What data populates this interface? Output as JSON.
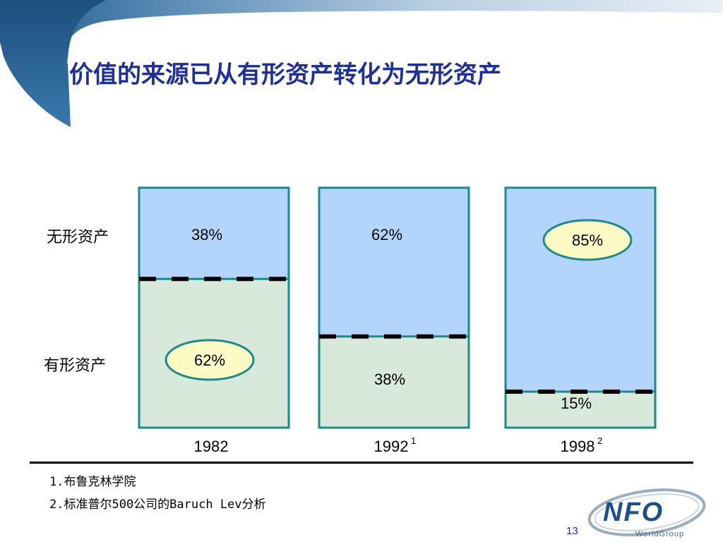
{
  "title": "价值的来源已从有形资产转化为无形资产",
  "row_labels": {
    "intangible": "无形资产",
    "tangible": "有形资产"
  },
  "chart_data": {
    "type": "bar",
    "stacked": true,
    "categories": [
      "1982",
      "1992",
      "1998"
    ],
    "category_superscripts": [
      "",
      "1",
      "2"
    ],
    "series": [
      {
        "name": "无形资产",
        "values": [
          38,
          62,
          85
        ],
        "labels": [
          "38%",
          "62%",
          "85%"
        ],
        "color": "#b3d4fb"
      },
      {
        "name": "有形资产",
        "values": [
          62,
          38,
          15
        ],
        "labels": [
          "62%",
          "38%",
          "15%"
        ],
        "color": "#d8e8da"
      }
    ],
    "highlighted": [
      {
        "series": "有形资产",
        "category": "1982"
      },
      {
        "series": "无形资产",
        "category": "1998"
      }
    ],
    "ylim": [
      0,
      100
    ],
    "border_color": "#1a8a8a",
    "highlight_fill": "#fff9c4"
  },
  "footnotes": [
    "1.布鲁克林学院",
    "2.标准普尔500公司的Baruch Lev分析"
  ],
  "page_number": "13",
  "logo": {
    "brand": "NFO",
    "sub": "WorldGroup"
  }
}
